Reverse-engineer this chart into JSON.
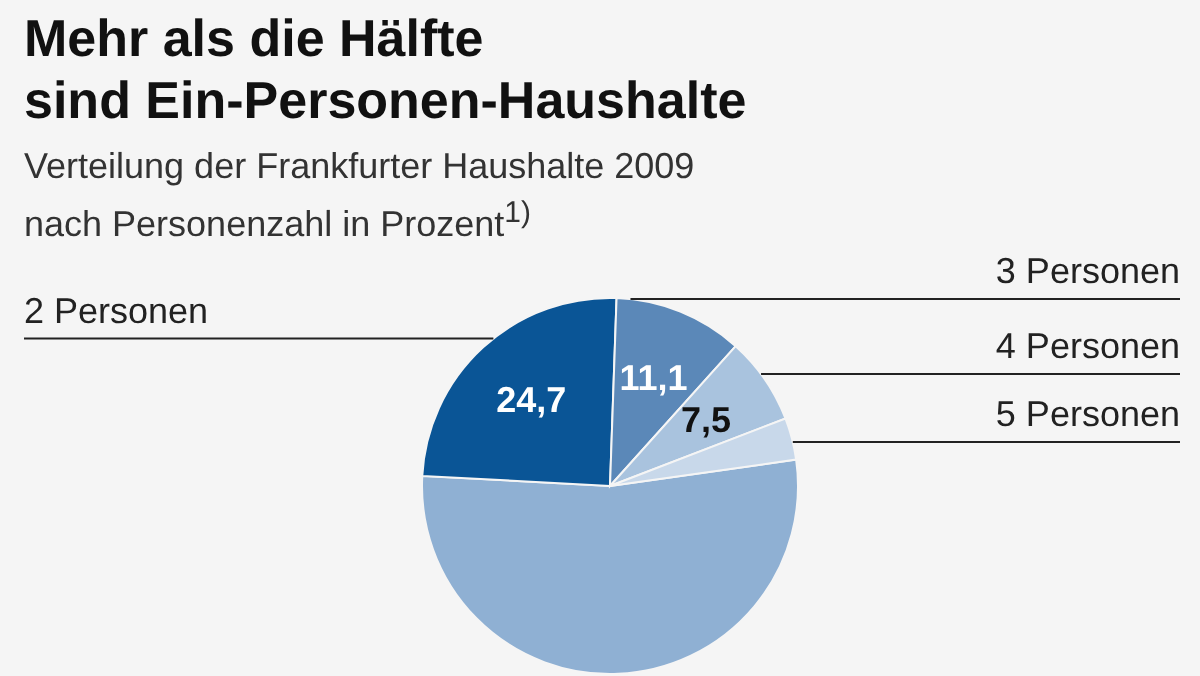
{
  "chart_data": {
    "type": "pie",
    "title": "Mehr als die Hälfte\nsind Ein-Personen-Haushalte",
    "subtitle": "Verteilung der Frankfurter Haushalte 2009\nnach Personenzahl in Prozent$^{1)}$",
    "categories": [
      null,
      "2 Personen",
      "3 Personen",
      "4 Personen",
      "5 Personen"
    ],
    "values": [
      53.1,
      24.7,
      11.1,
      7.5,
      3.6
    ],
    "colors": [
      "#8fb0d3",
      "#0a5596",
      "#5b88b8",
      "#a9c3de",
      "#c8d8ea"
    ],
    "value_labels": [
      null,
      "24,7",
      "11,1",
      "7,5",
      null
    ]
  }
}
